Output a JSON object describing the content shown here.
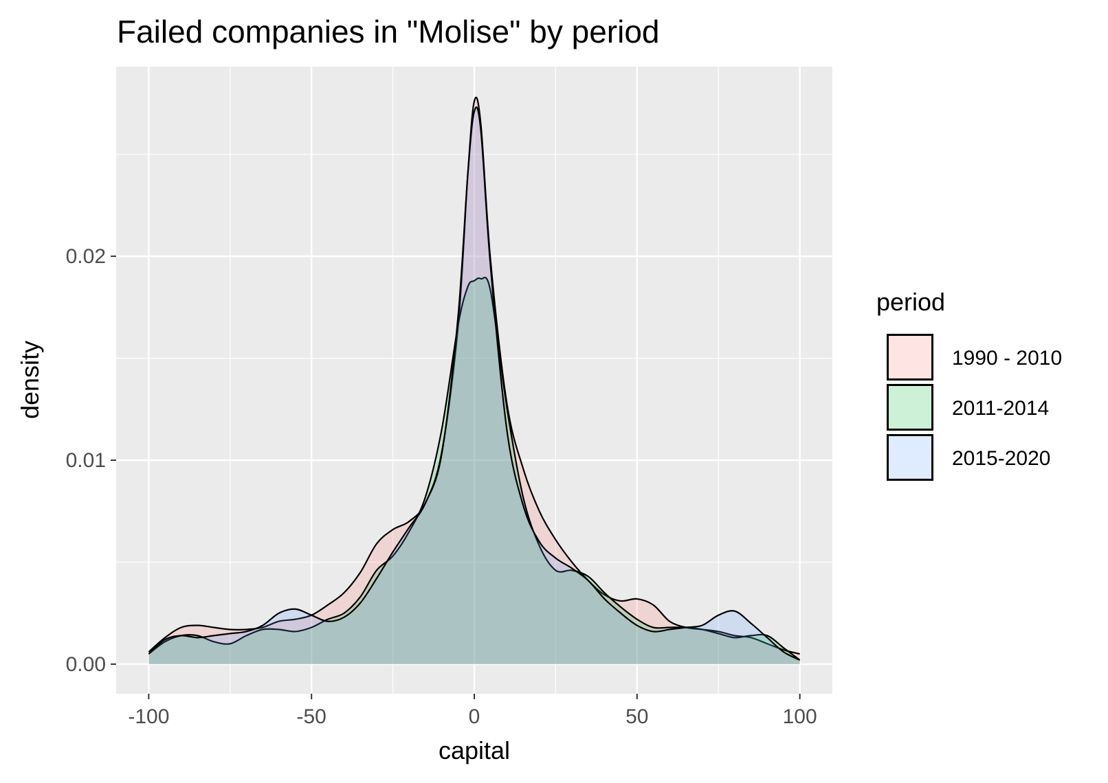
{
  "chart_data": {
    "type": "area",
    "title": "Failed companies in \"Molise\" by period",
    "xlabel": "capital",
    "ylabel": "density",
    "xlim": [
      -110,
      110
    ],
    "ylim": [
      -0.00145,
      0.0293
    ],
    "x_ticks": [
      -100,
      -50,
      0,
      50,
      100
    ],
    "x_tick_labels": [
      "-100",
      "-50",
      "0",
      "50",
      "100"
    ],
    "y_ticks": [
      0.0,
      0.01,
      0.02
    ],
    "y_tick_labels": [
      "0.00",
      "0.01",
      "0.02"
    ],
    "grid": true,
    "legend": {
      "title": "period",
      "position": "right"
    },
    "series": [
      {
        "name": "1990 - 2010",
        "fill": "#F8766D",
        "x": [
          -100,
          -95,
          -90,
          -85,
          -80,
          -75,
          -70,
          -65,
          -60,
          -55,
          -50,
          -45,
          -40,
          -35,
          -30,
          -25,
          -20,
          -15,
          -10,
          -5,
          -2,
          0,
          2,
          5,
          10,
          15,
          20,
          25,
          30,
          35,
          40,
          45,
          50,
          55,
          60,
          65,
          70,
          75,
          80,
          85,
          90,
          95,
          100
        ],
        "y": [
          0.0006,
          0.0013,
          0.0018,
          0.0019,
          0.0018,
          0.0017,
          0.0017,
          0.0018,
          0.0021,
          0.0022,
          0.0024,
          0.0029,
          0.0035,
          0.0045,
          0.0059,
          0.0066,
          0.007,
          0.0079,
          0.0104,
          0.0165,
          0.024,
          0.0276,
          0.0265,
          0.0198,
          0.0128,
          0.0096,
          0.0075,
          0.0061,
          0.005,
          0.0041,
          0.0034,
          0.0031,
          0.0032,
          0.0029,
          0.0021,
          0.0018,
          0.0017,
          0.0016,
          0.0014,
          0.0013,
          0.001,
          0.0007,
          0.0005
        ]
      },
      {
        "name": "2011-2014",
        "fill": "#00BA38",
        "x": [
          -100,
          -95,
          -90,
          -85,
          -80,
          -75,
          -70,
          -65,
          -60,
          -55,
          -50,
          -45,
          -40,
          -35,
          -30,
          -25,
          -20,
          -15,
          -10,
          -5,
          -2,
          0,
          2,
          5,
          10,
          15,
          20,
          25,
          30,
          35,
          40,
          45,
          50,
          55,
          60,
          65,
          70,
          75,
          80,
          85,
          90,
          95,
          100
        ],
        "y": [
          0.0005,
          0.0011,
          0.0014,
          0.0014,
          0.0011,
          0.001,
          0.0014,
          0.0017,
          0.0017,
          0.0016,
          0.0018,
          0.0022,
          0.0025,
          0.0033,
          0.0046,
          0.0053,
          0.0065,
          0.0082,
          0.0115,
          0.0166,
          0.0185,
          0.0188,
          0.0189,
          0.0183,
          0.0126,
          0.0082,
          0.0058,
          0.0046,
          0.0046,
          0.0043,
          0.0035,
          0.0028,
          0.0022,
          0.0018,
          0.0018,
          0.0018,
          0.0017,
          0.0015,
          0.0013,
          0.0014,
          0.0014,
          0.0008,
          0.0002
        ]
      },
      {
        "name": "2015-2020",
        "fill": "#619CFF",
        "x": [
          -100,
          -95,
          -90,
          -85,
          -80,
          -75,
          -70,
          -65,
          -60,
          -55,
          -50,
          -45,
          -40,
          -35,
          -30,
          -25,
          -20,
          -15,
          -10,
          -5,
          -2,
          0,
          2,
          5,
          10,
          15,
          20,
          25,
          30,
          35,
          40,
          45,
          50,
          55,
          60,
          65,
          70,
          75,
          80,
          85,
          90,
          95,
          100
        ],
        "y": [
          0.0005,
          0.0012,
          0.0014,
          0.0013,
          0.0014,
          0.0015,
          0.0016,
          0.0019,
          0.0025,
          0.0027,
          0.0024,
          0.0021,
          0.0023,
          0.003,
          0.0042,
          0.0055,
          0.0067,
          0.0079,
          0.0103,
          0.017,
          0.024,
          0.0271,
          0.0262,
          0.0195,
          0.0115,
          0.0078,
          0.006,
          0.0052,
          0.0047,
          0.0041,
          0.0032,
          0.0025,
          0.0019,
          0.0016,
          0.0017,
          0.0018,
          0.0019,
          0.0024,
          0.0026,
          0.002,
          0.0013,
          0.0006,
          0.0002
        ]
      }
    ]
  }
}
